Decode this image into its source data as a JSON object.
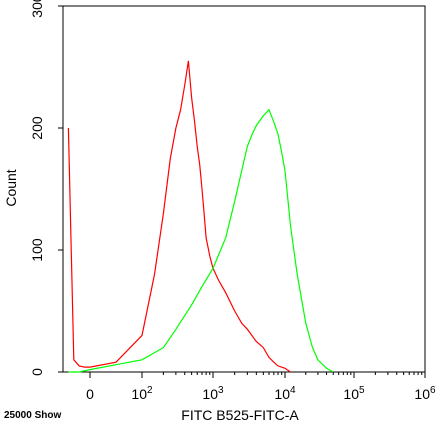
{
  "chart_data": {
    "type": "line",
    "title": "",
    "xlabel": "FITC B525-FITC-A",
    "ylabel": "Count",
    "footer_note": "25000 Show",
    "ylim": [
      0,
      300
    ],
    "x_scale": "biexponential",
    "grid": false,
    "legend": "none",
    "y_ticks": [
      {
        "value": 0,
        "label": "0"
      },
      {
        "value": 100,
        "label": "100"
      },
      {
        "value": 200,
        "label": "200"
      },
      {
        "value": 300,
        "label": "300"
      }
    ],
    "x_ticks": [
      {
        "value": 0,
        "label": "0",
        "exp": ""
      },
      {
        "value": 100,
        "label": "10",
        "exp": "2"
      },
      {
        "value": 1000,
        "label": "10",
        "exp": "3"
      },
      {
        "value": 10000,
        "label": "10",
        "exp": "4"
      },
      {
        "value": 100000,
        "label": "10",
        "exp": "5"
      },
      {
        "value": 1000000,
        "label": "10",
        "exp": "6"
      }
    ],
    "series": [
      {
        "color": "#ff0000",
        "x": [
          -200,
          -150,
          -100,
          -50,
          0,
          50,
          100,
          150,
          200,
          250,
          300,
          350,
          400,
          450,
          500,
          550,
          600,
          650,
          700,
          750,
          800,
          900,
          1000,
          1200,
          1500,
          2000,
          2500,
          3000,
          4000,
          5000,
          6000,
          7000,
          8000,
          10000,
          12000
        ],
        "y": [
          200,
          10,
          5,
          4,
          4,
          8,
          30,
          80,
          130,
          175,
          200,
          215,
          235,
          255,
          225,
          205,
          185,
          170,
          150,
          130,
          110,
          95,
          85,
          75,
          65,
          50,
          40,
          35,
          25,
          20,
          12,
          8,
          5,
          3,
          0
        ]
      },
      {
        "color": "#00ff00",
        "x": [
          -200,
          -100,
          0,
          100,
          200,
          300,
          500,
          700,
          1000,
          1500,
          2000,
          2500,
          3000,
          3500,
          4000,
          5000,
          6000,
          7000,
          8000,
          9000,
          10000,
          12000,
          15000,
          20000,
          25000,
          30000,
          40000,
          50000
        ],
        "y": [
          0,
          0,
          2,
          10,
          20,
          35,
          55,
          70,
          85,
          110,
          140,
          165,
          185,
          195,
          202,
          210,
          215,
          205,
          195,
          180,
          165,
          120,
          80,
          40,
          20,
          10,
          3,
          0
        ]
      }
    ]
  }
}
